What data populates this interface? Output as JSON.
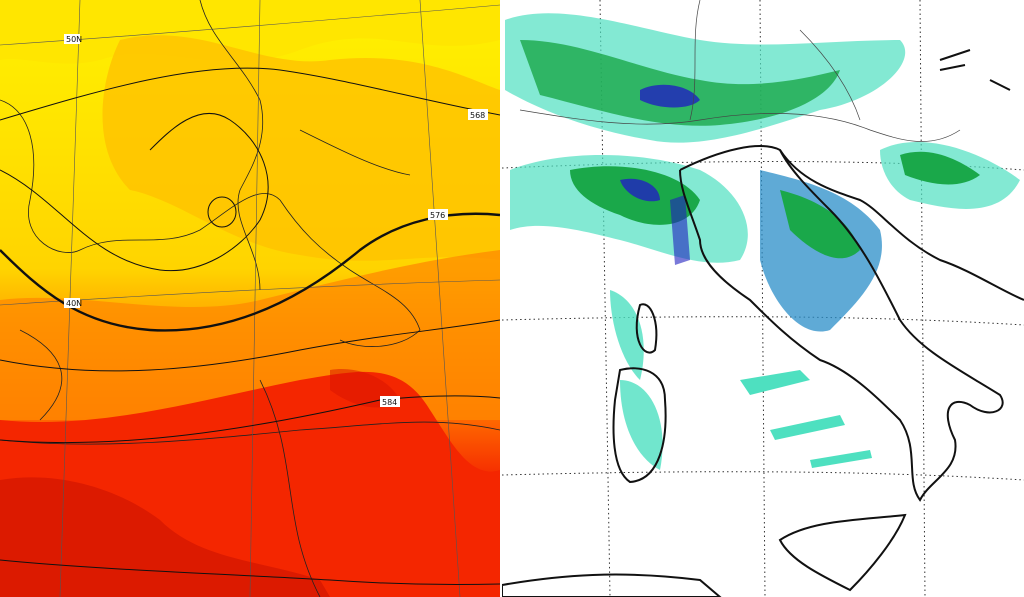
{
  "left_map": {
    "latitude_labels": [
      "50N",
      "40N"
    ],
    "contour_labels": [
      "568",
      "576",
      "584"
    ]
  }
}
